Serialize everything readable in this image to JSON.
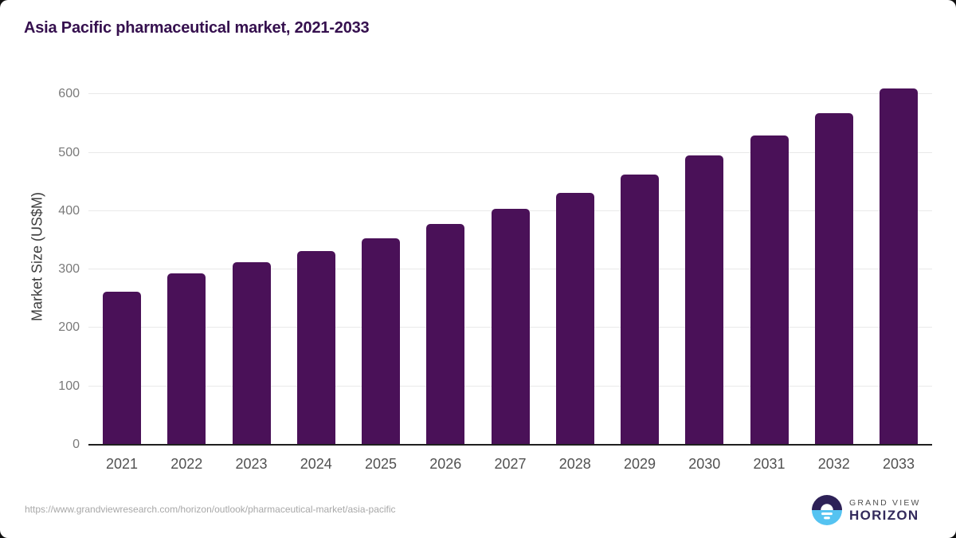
{
  "page": {
    "title": "Asia Pacific pharmaceutical market, 2021-2033",
    "source_url": "https://www.grandviewresearch.com/horizon/outlook/pharmaceutical-market/asia-pacific"
  },
  "logo": {
    "name": "Grand View Horizon",
    "line1": "GRAND VIEW",
    "line2": "HORIZON",
    "icon": "horizon-sun-icon",
    "icon_colors": {
      "top_half": "#2d2157",
      "bottom_half": "#55c3f1",
      "sun_and_reflection": "#ffffff"
    }
  },
  "chart_data": {
    "type": "bar",
    "title": "Asia Pacific pharmaceutical market, 2021-2033",
    "categories": [
      "2021",
      "2022",
      "2023",
      "2024",
      "2025",
      "2026",
      "2027",
      "2028",
      "2029",
      "2030",
      "2031",
      "2032",
      "2033"
    ],
    "values": [
      262,
      293,
      312,
      331,
      354,
      378,
      404,
      431,
      462,
      495,
      529,
      568,
      610
    ],
    "xlabel": "",
    "ylabel": "Market Size (US$M)",
    "yticks": [
      0,
      100,
      200,
      300,
      400,
      500,
      600
    ],
    "ylim": [
      0,
      625
    ],
    "grid": true,
    "legend": false,
    "bar_color": "#4a1158"
  },
  "colors": {
    "title": "#35104e",
    "bar": "#4a1158",
    "gridline": "#e9e9e9",
    "axis_line": "#1f1f1f",
    "y_tick_label": "#7a7a7a",
    "x_tick_label": "#515151",
    "source_url": "#a8a8a8"
  }
}
